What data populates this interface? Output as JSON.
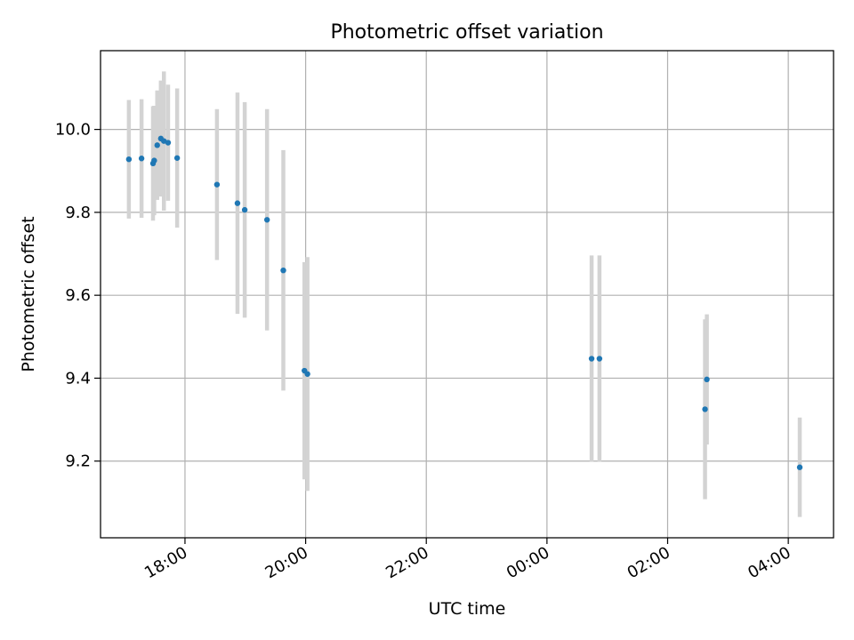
{
  "chart_data": {
    "type": "scatter",
    "title": "Photometric offset variation",
    "xlabel": "UTC time",
    "ylabel": "Photometric offset",
    "x_unit": "hours since 00:00 UTC of first day",
    "xlim": [
      16.6,
      28.75
    ],
    "ylim": [
      9.015,
      10.19
    ],
    "grid": true,
    "x_ticks": [
      {
        "value": 18,
        "label": "18:00"
      },
      {
        "value": 20,
        "label": "20:00"
      },
      {
        "value": 22,
        "label": "22:00"
      },
      {
        "value": 24,
        "label": "00:00"
      },
      {
        "value": 26,
        "label": "02:00"
      },
      {
        "value": 28,
        "label": "04:00"
      }
    ],
    "y_ticks": [
      {
        "value": 9.2,
        "label": "9.2"
      },
      {
        "value": 9.4,
        "label": "9.4"
      },
      {
        "value": 9.6,
        "label": "9.6"
      },
      {
        "value": 9.8,
        "label": "9.8"
      },
      {
        "value": 10.0,
        "label": "10.0"
      }
    ],
    "marker_color": "#1f77b4",
    "errorbar_color": "#d3d3d3",
    "series": [
      {
        "name": "Photometric offset",
        "points": [
          {
            "x": 17.07,
            "y": 9.928,
            "err": 0.143
          },
          {
            "x": 17.28,
            "y": 9.93,
            "err": 0.143
          },
          {
            "x": 17.47,
            "y": 9.918,
            "err": 0.138
          },
          {
            "x": 17.49,
            "y": 9.925,
            "err": 0.132
          },
          {
            "x": 17.54,
            "y": 9.962,
            "err": 0.132
          },
          {
            "x": 17.6,
            "y": 9.978,
            "err": 0.14
          },
          {
            "x": 17.65,
            "y": 9.972,
            "err": 0.168
          },
          {
            "x": 17.72,
            "y": 9.968,
            "err": 0.14
          },
          {
            "x": 17.87,
            "y": 9.931,
            "err": 0.168
          },
          {
            "x": 18.53,
            "y": 9.867,
            "err": 0.182
          },
          {
            "x": 18.87,
            "y": 9.822,
            "err": 0.267
          },
          {
            "x": 18.99,
            "y": 9.806,
            "err": 0.26
          },
          {
            "x": 19.36,
            "y": 9.782,
            "err": 0.267
          },
          {
            "x": 19.63,
            "y": 9.66,
            "err": 0.29
          },
          {
            "x": 19.98,
            "y": 9.418,
            "err": 0.262
          },
          {
            "x": 20.03,
            "y": 9.41,
            "err": 0.282
          },
          {
            "x": 24.74,
            "y": 9.447,
            "err": 0.249
          },
          {
            "x": 24.87,
            "y": 9.447,
            "err": 0.249
          },
          {
            "x": 26.62,
            "y": 9.325,
            "err": 0.217
          },
          {
            "x": 26.65,
            "y": 9.397,
            "err": 0.157
          },
          {
            "x": 28.19,
            "y": 9.185,
            "err": 0.12
          }
        ]
      }
    ]
  }
}
